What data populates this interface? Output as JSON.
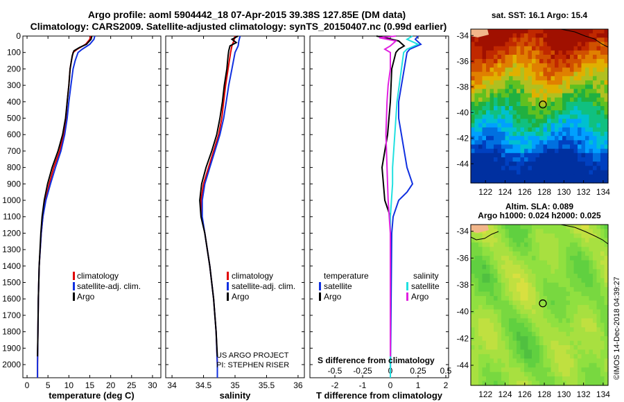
{
  "title_line1": "Argo profile: aoml 5904442_18 07-Apr-2015 39.38S 127.85E (DM data)",
  "title_line2": "Climatology: CARS2009. Satellite-adjusted climatology: synTS_20150407.nc (0.99d earlier)",
  "colors": {
    "climatology": "#e00000",
    "satellite": "#1030e0",
    "argo": "#000000",
    "sat_salinity": "#20e0e0",
    "argo_salinity": "#e020e0"
  },
  "chart_data": [
    {
      "type": "line",
      "xlabel": "temperature (deg C)",
      "ylabel": "",
      "xlim": [
        -1,
        32
      ],
      "ylim": [
        2080,
        0
      ],
      "xticks": [
        "0",
        "5",
        "10",
        "15",
        "20",
        "25",
        "30"
      ],
      "yticks": [
        "0",
        "100",
        "200",
        "300",
        "400",
        "500",
        "600",
        "700",
        "800",
        "900",
        "1000",
        "1100",
        "1200",
        "1300",
        "1400",
        "1500",
        "1600",
        "1700",
        "1800",
        "1900",
        "2000"
      ],
      "legend": [
        "climatology",
        "satellite-adj. clim.",
        "Argo"
      ],
      "series": [
        {
          "name": "climatology",
          "depth": [
            0,
            20,
            50,
            80,
            100,
            150,
            200,
            300,
            400,
            500,
            600,
            700,
            800,
            900,
            1000,
            1100,
            1200,
            1400,
            1600,
            1800,
            2000,
            2080
          ],
          "values": [
            15.2,
            15.0,
            14.0,
            12.0,
            11.0,
            10.6,
            10.3,
            10.0,
            9.6,
            9.3,
            8.7,
            7.8,
            6.4,
            5.3,
            4.4,
            3.8,
            3.4,
            2.9,
            2.7,
            2.6,
            2.5,
            2.5
          ]
        },
        {
          "name": "satellite-adj. clim.",
          "depth": [
            0,
            20,
            50,
            80,
            100,
            150,
            200,
            300,
            400,
            500,
            600,
            700,
            800,
            900,
            1000,
            1100,
            1200,
            1400,
            1600,
            1800,
            2000,
            2080
          ],
          "values": [
            16.2,
            16.0,
            15.0,
            13.2,
            12.2,
            11.5,
            11.0,
            10.5,
            10.0,
            9.6,
            9.0,
            8.1,
            6.8,
            5.6,
            4.5,
            3.8,
            3.4,
            2.9,
            2.7,
            2.6,
            2.5,
            2.5
          ]
        },
        {
          "name": "Argo",
          "depth": [
            0,
            20,
            50,
            70,
            90,
            120,
            200,
            300,
            400,
            500,
            600,
            700,
            800,
            900,
            1000,
            1100,
            1200,
            1400,
            1600,
            1800,
            1950
          ],
          "values": [
            15.5,
            15.3,
            14.2,
            12.5,
            11.2,
            10.8,
            10.3,
            10.0,
            9.6,
            9.2,
            8.5,
            7.4,
            6.0,
            4.9,
            4.1,
            3.6,
            3.3,
            2.9,
            2.7,
            2.6,
            2.5
          ]
        }
      ]
    },
    {
      "type": "line",
      "xlabel": "salinity",
      "xlim": [
        33.9,
        36.1
      ],
      "ylim": [
        2080,
        0
      ],
      "xticks": [
        "34",
        "34.5",
        "35",
        "35.5",
        "36"
      ],
      "legend": [
        "climatology",
        "satellite-adj. clim.",
        "Argo"
      ],
      "series": [
        {
          "name": "climatology",
          "depth": [
            0,
            30,
            60,
            100,
            200,
            300,
            400,
            500,
            600,
            700,
            800,
            900,
            1000,
            1100,
            1200,
            1400,
            1600,
            1800,
            2000,
            2080
          ],
          "values": [
            35.0,
            34.98,
            34.95,
            34.93,
            34.89,
            34.85,
            34.82,
            34.79,
            34.74,
            34.66,
            34.58,
            34.5,
            34.46,
            34.47,
            34.52,
            34.6,
            34.66,
            34.7,
            34.72,
            34.72
          ]
        },
        {
          "name": "satellite-adj. clim.",
          "depth": [
            0,
            30,
            60,
            100,
            200,
            300,
            400,
            500,
            600,
            700,
            800,
            900,
            1000,
            1100,
            1200,
            1400,
            1600,
            1800,
            2000,
            2080
          ],
          "values": [
            35.08,
            35.06,
            35.05,
            35.0,
            34.95,
            34.9,
            34.86,
            34.82,
            34.76,
            34.68,
            34.6,
            34.52,
            34.48,
            34.48,
            34.52,
            34.6,
            34.66,
            34.7,
            34.72,
            34.72
          ]
        },
        {
          "name": "Argo",
          "depth": [
            0,
            20,
            40,
            60,
            90,
            120,
            200,
            300,
            400,
            500,
            600,
            700,
            800,
            900,
            1000,
            1100,
            1200,
            1400,
            1600,
            1800,
            1950
          ],
          "values": [
            35.05,
            34.95,
            35.02,
            34.92,
            34.9,
            34.89,
            34.87,
            34.83,
            34.8,
            34.76,
            34.71,
            34.63,
            34.54,
            34.47,
            34.44,
            34.46,
            34.52,
            34.6,
            34.66,
            34.7,
            34.72
          ]
        }
      ]
    },
    {
      "type": "line",
      "xlabel": "T difference from climatology",
      "top_xlabel": "S difference from climatology",
      "xlim": [
        -2.9,
        2.1
      ],
      "ylim": [
        2080,
        0
      ],
      "xticks": [
        "-2",
        "-1",
        "0",
        "1",
        "2"
      ],
      "top_xticks": [
        "-0.5",
        "-0.25",
        "0",
        "0.25",
        "0.5"
      ],
      "legend_left": {
        "header": "temperature",
        "items": [
          "satellite",
          "Argo"
        ]
      },
      "legend_right": {
        "header": "salinity",
        "items": [
          "satellite",
          "Argo"
        ]
      },
      "series": [
        {
          "name": "temperature satellite",
          "depth": [
            0,
            20,
            50,
            80,
            100,
            200,
            300,
            400,
            500,
            600,
            700,
            800,
            850,
            900,
            950,
            1000,
            1100,
            1200,
            2080
          ],
          "values": [
            1.0,
            0.9,
            1.1,
            0.7,
            0.6,
            0.5,
            0.4,
            0.3,
            0.3,
            0.4,
            0.5,
            0.6,
            0.7,
            0.8,
            0.6,
            0.3,
            0.1,
            0.05,
            0.0
          ]
        },
        {
          "name": "temperature Argo",
          "depth": [
            0,
            10,
            30,
            60,
            80,
            100,
            200,
            400,
            600,
            800,
            1000,
            1100,
            1200,
            1400,
            1600,
            1800,
            1950
          ],
          "values": [
            -0.5,
            -0.2,
            0.3,
            0.5,
            0.3,
            0.2,
            0.05,
            0.0,
            -0.1,
            -0.3,
            -0.2,
            0.0,
            0.0,
            0.0,
            0.0,
            0.0,
            0.0
          ]
        },
        {
          "name": "salinity satellite",
          "depth": [
            0,
            20,
            50,
            80,
            100,
            200,
            300,
            400,
            500,
            600,
            700,
            800,
            900,
            1000,
            1100,
            1200,
            2080
          ],
          "values": [
            0.2,
            0.15,
            0.25,
            0.15,
            0.12,
            0.1,
            0.08,
            0.06,
            0.05,
            0.04,
            0.03,
            0.02,
            0.02,
            0.01,
            0.0,
            0.0,
            0.0
          ]
        },
        {
          "name": "salinity Argo",
          "depth": [
            0,
            10,
            30,
            60,
            80,
            100,
            200,
            300,
            400,
            600,
            800,
            1000,
            1200,
            1400,
            1600,
            1800,
            1950
          ],
          "values": [
            0.05,
            -0.1,
            0.05,
            0.0,
            -0.05,
            0.0,
            0.0,
            -0.02,
            -0.03,
            -0.04,
            -0.03,
            -0.02,
            0.0,
            0.0,
            0.0,
            0.0,
            0.0
          ]
        }
      ]
    },
    {
      "type": "heatmap",
      "title": "sat. SST: 16.1 Argo: 15.4",
      "xticks": [
        "122",
        "124",
        "126",
        "128",
        "130",
        "132",
        "134"
      ],
      "yticks": [
        "-34",
        "-36",
        "-38",
        "-40",
        "-42",
        "-44"
      ],
      "xlim": [
        120.5,
        134.5
      ],
      "ylim": [
        -45.5,
        -33.5
      ],
      "argo_position": [
        127.85,
        -39.38
      ]
    },
    {
      "type": "heatmap",
      "title": "Altim. SLA: 0.089",
      "subtitle": "Argo h1000: 0.024 h2000: 0.025",
      "xticks": [
        "122",
        "124",
        "126",
        "128",
        "130",
        "132",
        "134"
      ],
      "yticks": [
        "-34",
        "-36",
        "-38",
        "-40",
        "-42",
        "-44"
      ],
      "xlim": [
        120.5,
        134.5
      ],
      "ylim": [
        -45.5,
        -33.5
      ],
      "argo_position": [
        127.85,
        -39.38
      ]
    }
  ],
  "credit_project": "US ARGO PROJECT",
  "credit_pi": "PI: STEPHEN RISER",
  "footer": "©IMOS 14-Dec-2018 04:39:27"
}
